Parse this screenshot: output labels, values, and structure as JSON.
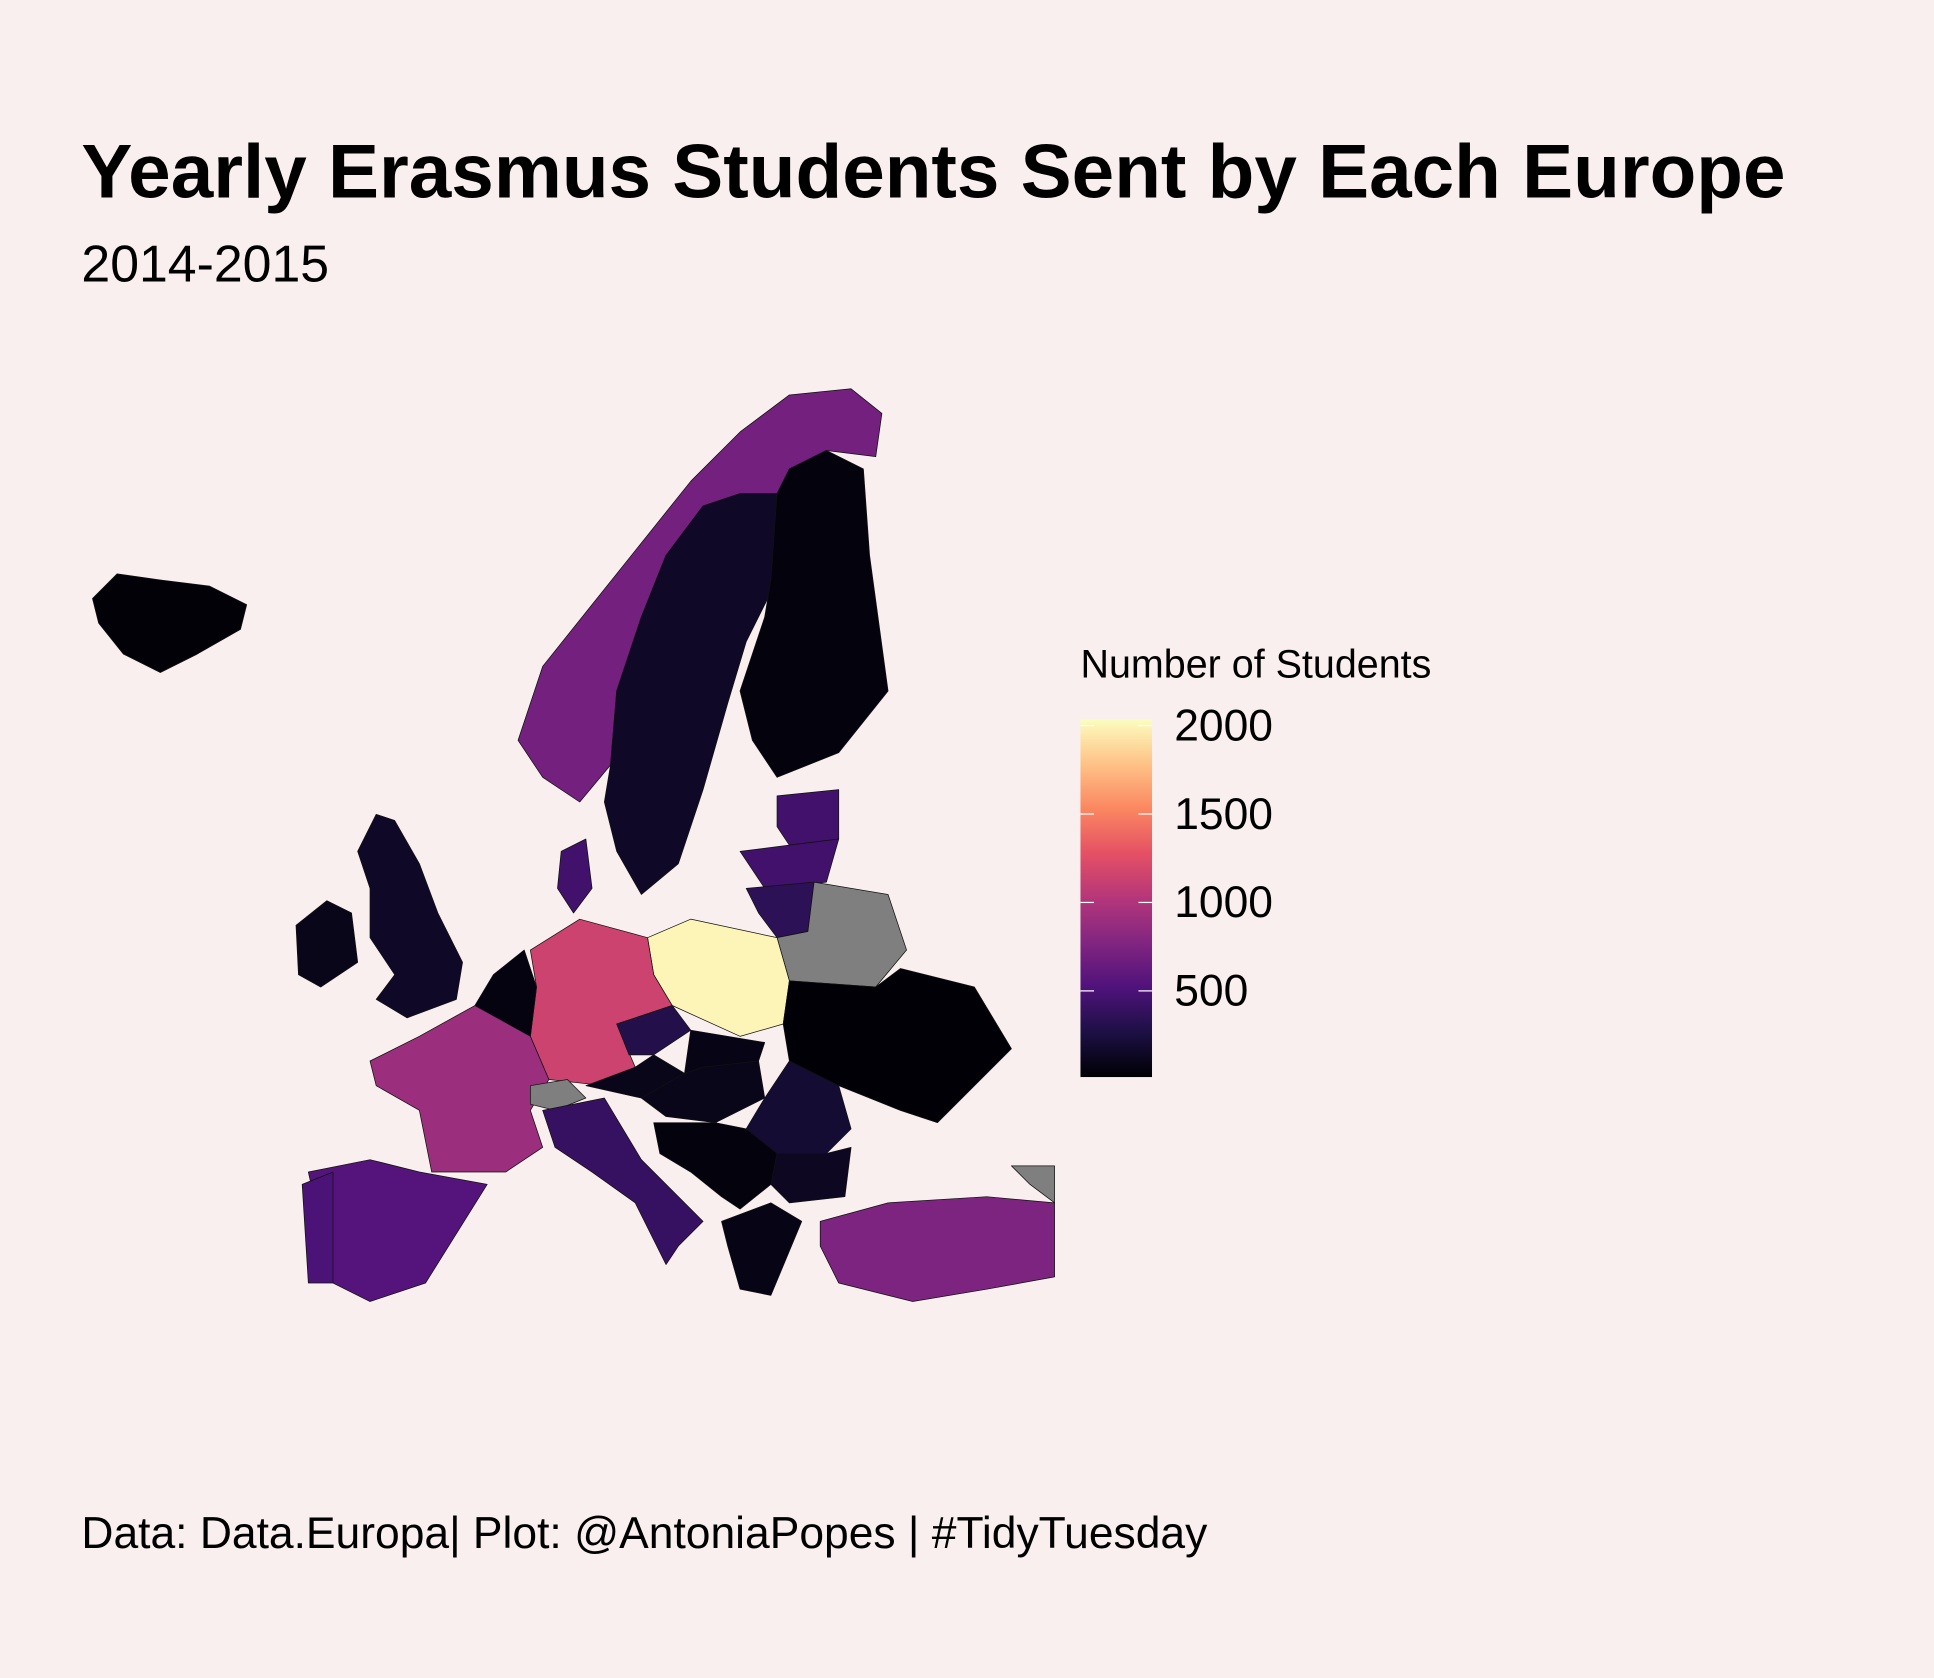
{
  "chart_data": {
    "type": "choropleth",
    "title": "Yearly Erasmus Students Sent by Each Europe",
    "subtitle": "2014-2015",
    "caption": "Data: Data.Europa| Plot: @AntoniaPopes | #TidyTuesday",
    "legend_title": "Number of Students",
    "values": [
      30,
      700,
      150,
      50,
      450,
      450,
      350,
      null,
      2000,
      1150,
      450,
      60,
      150,
      100,
      900,
      null,
      550,
      500,
      400,
      300,
      100,
      80,
      100,
      20,
      200,
      130,
      50,
      80,
      750,
      null
    ],
    "clim": [
      13,
      2035
    ],
    "cticks": [
      500,
      1000,
      1500,
      2000
    ],
    "colorscale": [
      "#000004",
      "#1c1044",
      "#4f127b",
      "#812581",
      "#b5367a",
      "#e55064",
      "#fb8761",
      "#fec287",
      "#fcfdbf"
    ],
    "na_color": "#7f7f7f"
  }
}
